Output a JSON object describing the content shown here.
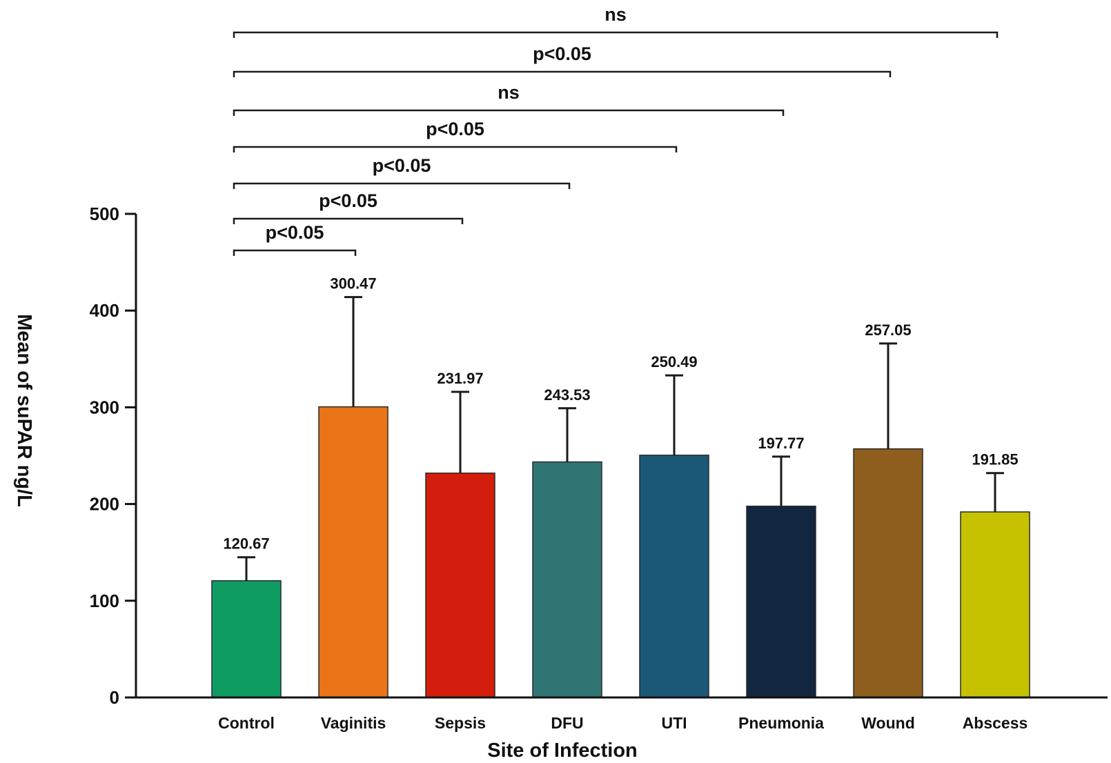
{
  "chart_data": {
    "type": "bar",
    "title": "",
    "xlabel": "Site of Infection",
    "ylabel": "Mean of suPAR ng/L",
    "ylim": [
      0,
      500
    ],
    "yticks": [
      0,
      100,
      200,
      300,
      400,
      500
    ],
    "grid": false,
    "categories": [
      "Control",
      "Vaginitis",
      "Sepsis",
      "DFU",
      "UTI",
      "Pneumonia",
      "Wound",
      "Abscess"
    ],
    "values": [
      120.67,
      300.47,
      231.97,
      243.53,
      250.49,
      197.77,
      257.05,
      191.85
    ],
    "value_labels": [
      "120.67",
      "300.47",
      "231.97",
      "243.53",
      "250.49",
      "197.77",
      "257.05",
      "191.85"
    ],
    "error_upper": [
      145,
      414,
      316,
      299,
      333,
      249,
      366,
      232
    ],
    "colors": [
      "#0e9c62",
      "#ea7417",
      "#d41e0d",
      "#2e7574",
      "#1b5877",
      "#132640",
      "#8d5e1d",
      "#c6c200"
    ],
    "comparisons": [
      {
        "from": "Control",
        "to": "Vaginitis",
        "label": "p<0.05"
      },
      {
        "from": "Control",
        "to": "Sepsis",
        "label": "p<0.05"
      },
      {
        "from": "Control",
        "to": "DFU",
        "label": "p<0.05"
      },
      {
        "from": "Control",
        "to": "UTI",
        "label": "p<0.05"
      },
      {
        "from": "Control",
        "to": "Pneumonia",
        "label": "ns"
      },
      {
        "from": "Control",
        "to": "Wound",
        "label": "p<0.05"
      },
      {
        "from": "Control",
        "to": "Abscess",
        "label": "ns"
      }
    ]
  }
}
